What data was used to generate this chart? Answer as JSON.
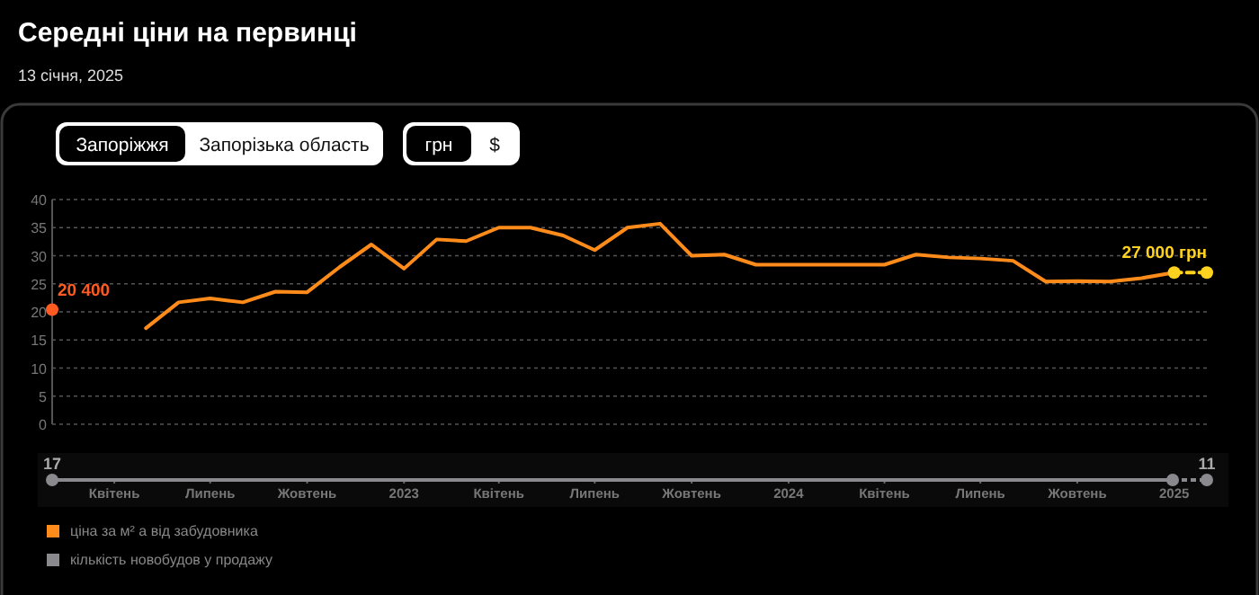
{
  "chart_data": {
    "type": "line",
    "title": "Середні ціни на первинці",
    "subtitle": "13 січня, 2025",
    "annotations": [
      "Запоріжжя",
      "Запорізька область",
      "грн",
      "$",
      "17",
      "11",
      "кількість новобудов у продажу",
      {
        "text": "20 400",
        "x": "2022-02",
        "y": 20.4
      },
      {
        "text": "27 000 грн",
        "x": "2025-02",
        "y": 27
      }
    ],
    "xlim": [
      "2022-02",
      "2025-02"
    ],
    "xticks": [
      {
        "value": "2022-04",
        "label": "Квітень"
      },
      {
        "value": "2022-07",
        "label": "Липень"
      },
      {
        "value": "2022-10",
        "label": "Жовтень"
      },
      {
        "value": "2023-01",
        "label": "2023"
      },
      {
        "value": "2023-04",
        "label": "Квітень"
      },
      {
        "value": "2023-07",
        "label": "Липень"
      },
      {
        "value": "2023-10",
        "label": "Жовтень"
      },
      {
        "value": "2024-01",
        "label": "2024"
      },
      {
        "value": "2024-04",
        "label": "Квітень"
      },
      {
        "value": "2024-07",
        "label": "Липень"
      },
      {
        "value": "2024-10",
        "label": "Жовтень"
      },
      {
        "value": "2025-01",
        "label": "2025"
      }
    ],
    "ylim": [
      0,
      40
    ],
    "yticks": [
      0,
      5,
      10,
      15,
      20,
      25,
      30,
      35,
      40
    ],
    "grid": "y",
    "legend": "bottom left",
    "series": [
      {
        "name": "ціна за м² а від забудовника",
        "color": "#ff8c1a",
        "marker": "none",
        "x": [
          "2022-05",
          "2022-06",
          "2022-07",
          "2022-08",
          "2022-09",
          "2022-10",
          "2022-11",
          "2022-12",
          "2023-01",
          "2023-02",
          "2023-03",
          "2023-04",
          "2023-05",
          "2023-06",
          "2023-07",
          "2023-08",
          "2023-09",
          "2023-10",
          "2023-11",
          "2023-12",
          "2024-01",
          "2024-02",
          "2024-03",
          "2024-04",
          "2024-05",
          "2024-06",
          "2024-07",
          "2024-08",
          "2024-09",
          "2024-10",
          "2024-11",
          "2024-12",
          "2025-01"
        ],
        "values": [
          17.1,
          21.7,
          22.4,
          21.7,
          23.6,
          23.5,
          28,
          32,
          27.7,
          32.9,
          32.6,
          35,
          35,
          33.6,
          31,
          35,
          35.7,
          30,
          30.2,
          28.4,
          28.4,
          28.4,
          28.4,
          28.4,
          30.2,
          29.7,
          29.5,
          29.1,
          25.4,
          25.5,
          25.4,
          26,
          27
        ]
      },
      {
        "color": "#ffd21f",
        "marker": "circle",
        "line_style": "dashed",
        "x": [
          "2025-01",
          "2025-02"
        ],
        "values": [
          27,
          27
        ]
      },
      {
        "type": "scatter",
        "color": "#ff5a1f",
        "marker": "circle",
        "x": [
          "2022-02"
        ],
        "values": [
          20.4
        ]
      }
    ]
  }
}
